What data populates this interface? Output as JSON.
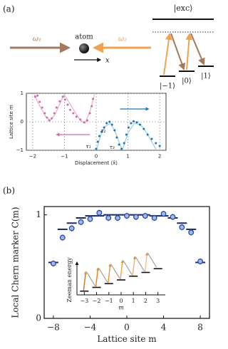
{
  "diagram": {
    "panel_label": "(a)",
    "omega1": "ω₁",
    "atom": "atom",
    "omega2": "ω₂",
    "axis": "x",
    "excited": "|exc⟩",
    "levels": [
      "|−1⟩",
      "|0⟩",
      "|1⟩"
    ]
  },
  "chart_data": [
    {
      "type": "scatter",
      "xlabel": "Displacement ⟨x̂⟩",
      "ylabel": "Lattice site m",
      "xlim": [
        -2.2,
        2.2
      ],
      "ylim": [
        -1,
        1
      ],
      "xticks": [
        {
          "value": -2,
          "label": "−2"
        },
        {
          "value": -1,
          "label": "−1"
        },
        0,
        1,
        2
      ],
      "yticks": [
        {
          "value": -1,
          "label": "−1"
        },
        0,
        1
      ],
      "grid": true,
      "annotations": [
        "τ₁",
        "τ₂",
        "τ₃"
      ],
      "series": [
        {
          "mode": "markers",
          "color": "#cf6aad",
          "x": [
            -1.92,
            -1.85,
            -1.78,
            -1.7,
            -1.62,
            -1.55,
            -1.48,
            -1.4,
            -1.32,
            -1.25,
            -1.15,
            -1.05,
            -0.98,
            -0.9,
            -0.82,
            -0.72,
            -0.62,
            -0.5,
            -0.38,
            -0.28,
            -0.2,
            -0.14,
            -0.1
          ],
          "values": [
            0.88,
            0.92,
            0.7,
            0.5,
            0.3,
            0.15,
            0.05,
            0.12,
            0.3,
            0.5,
            0.72,
            0.88,
            0.78,
            0.6,
            0.42,
            0.3,
            0.18,
            0.08,
            -0.02,
            0.05,
            0.3,
            0.55,
            0.8
          ]
        },
        {
          "mode": "line",
          "color": "#eaa3d2",
          "x": [
            -1.95,
            -1.8,
            -1.6,
            -1.45,
            -1.3,
            -1.1,
            -1.0
          ],
          "values": [
            0.95,
            0.6,
            0.2,
            0.05,
            0.25,
            0.75,
            0.95
          ]
        },
        {
          "mode": "line",
          "color": "#eaa3d2",
          "x": [
            -1.0,
            -0.7,
            -0.5,
            -0.35,
            -0.2,
            -0.05
          ],
          "values": [
            0.95,
            0.4,
            0.05,
            -0.05,
            0.35,
            0.95
          ]
        },
        {
          "mode": "markers",
          "color": "#1c74b4",
          "x": [
            0.0,
            0.05,
            0.1,
            0.17,
            0.25,
            0.33,
            0.42,
            0.5,
            0.58,
            0.65,
            0.72,
            0.8,
            0.88,
            0.95,
            1.02,
            1.1,
            1.18,
            1.28,
            1.38,
            1.5,
            1.62,
            1.75,
            1.88,
            2.0
          ],
          "values": [
            -0.95,
            -0.7,
            -0.5,
            -0.35,
            -0.2,
            -0.05,
            0.0,
            -0.1,
            -0.3,
            -0.55,
            -0.8,
            -0.95,
            -0.75,
            -0.45,
            -0.2,
            -0.05,
            0.02,
            -0.02,
            -0.1,
            -0.25,
            -0.45,
            -0.6,
            -0.75,
            -0.85
          ]
        },
        {
          "mode": "line",
          "color": "#8cc8ec",
          "x": [
            0.0,
            0.15,
            0.3,
            0.45,
            0.6,
            0.75,
            0.82
          ],
          "values": [
            -1,
            -0.45,
            -0.15,
            -0.05,
            -0.35,
            -0.8,
            -1
          ]
        },
        {
          "mode": "line",
          "color": "#8cc8ec",
          "x": [
            0.82,
            1.0,
            1.2,
            1.4,
            1.6,
            1.8,
            1.9
          ],
          "values": [
            -1,
            -0.4,
            -0.05,
            -0.1,
            -0.4,
            -0.8,
            -1
          ]
        }
      ]
    },
    {
      "type": "errorbar",
      "panel_label": "(b)",
      "xlabel": "Lattice site m",
      "ylabel": "Local Chern marker C(m)",
      "xlim": [
        -9,
        9
      ],
      "ylim": [
        0,
        1.08
      ],
      "xticks": [
        {
          "value": -8,
          "label": "−8"
        },
        {
          "value": -4,
          "label": "−4"
        },
        0,
        4,
        8
      ],
      "yticks": [
        0,
        1
      ],
      "series": [
        {
          "mode": "markers",
          "color": "#2c47a3",
          "fill": "#9fbbea",
          "error_color": "#7396d8",
          "x": [
            -8,
            -7,
            -6,
            -5,
            -4,
            -3,
            -2,
            -1,
            0,
            1,
            2,
            3,
            4,
            5,
            6,
            7,
            8
          ],
          "values": [
            0.53,
            0.78,
            0.87,
            0.93,
            0.96,
            1.02,
            0.97,
            0.97,
            0.99,
            0.98,
            0.99,
            0.97,
            1.01,
            0.98,
            0.88,
            0.83,
            0.55
          ],
          "errors": [
            0.03,
            0.03,
            0.03,
            0.03,
            0.03,
            0.03,
            0.03,
            0.03,
            0.03,
            0.03,
            0.03,
            0.03,
            0.03,
            0.03,
            0.03,
            0.03,
            0.03
          ]
        },
        {
          "mode": "level",
          "color": "#1b2a6b",
          "x": [
            -8,
            -7,
            -6,
            -5,
            -4,
            -3,
            -2,
            -1,
            0,
            1,
            2,
            3,
            4,
            5,
            6,
            7,
            8
          ],
          "values": [
            0.54,
            0.86,
            0.92,
            0.97,
            0.99,
            0.99,
            1.0,
            1.0,
            1.0,
            1.0,
            1.0,
            0.99,
            0.99,
            0.97,
            0.92,
            0.86,
            0.54
          ]
        }
      ]
    },
    {
      "type": "level",
      "xlabel": "m",
      "ylabel": "Zeeman energy",
      "xlim": [
        -3.6,
        3.6
      ],
      "ylim": [
        -1,
        7
      ],
      "xticks": [
        {
          "value": -3,
          "label": "−3"
        },
        {
          "value": -2,
          "label": "−2"
        },
        {
          "value": -1,
          "label": "−1"
        },
        0,
        1,
        2,
        3
      ],
      "x": [
        -3,
        -2,
        -1,
        0,
        1,
        2,
        3
      ],
      "values": [
        0,
        1,
        2,
        3,
        4,
        5,
        6
      ],
      "color": "#111"
    }
  ]
}
